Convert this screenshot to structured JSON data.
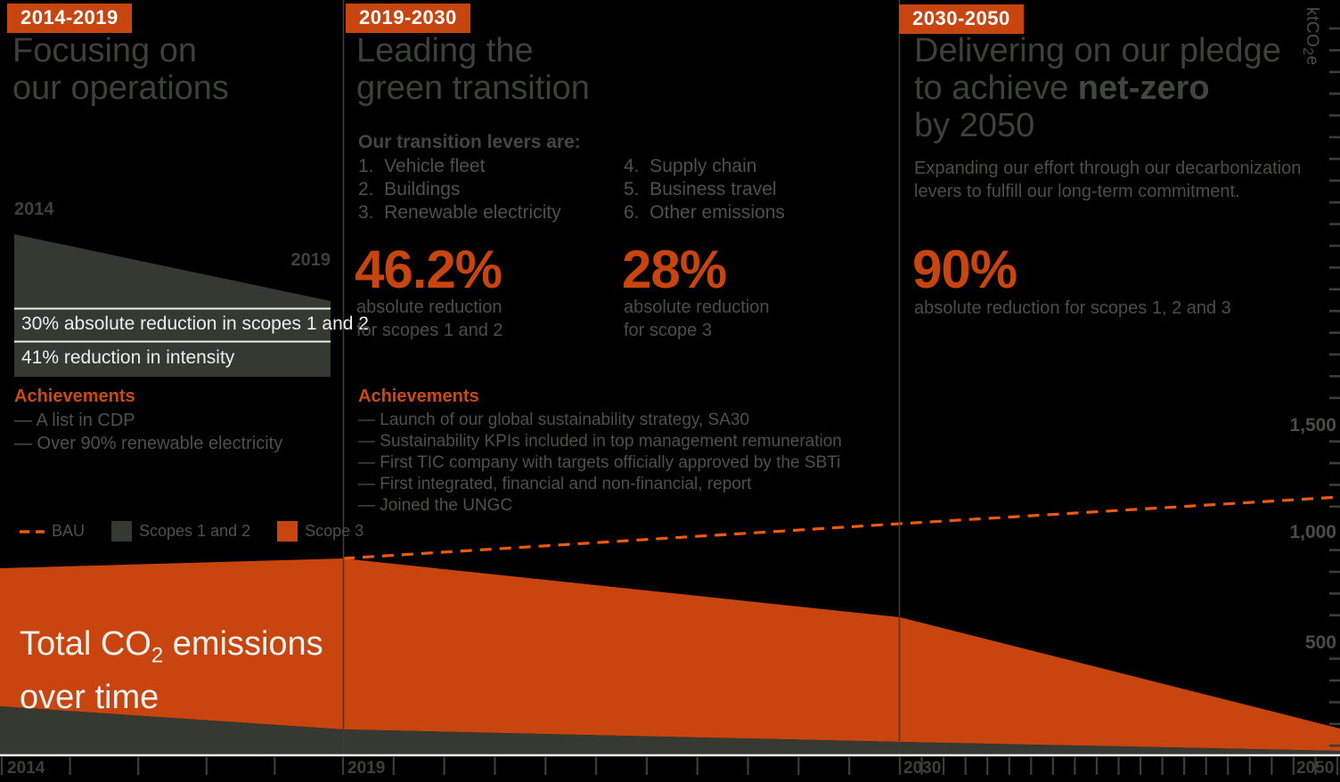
{
  "colors": {
    "background": "#000000",
    "accent_orange": "#C8450F",
    "bau_line_orange": "#EE5A0D",
    "dark_area_gray": "#363931",
    "title_gray": "#3D403B",
    "body_gray": "#4E514B",
    "white_text": "#F2F2F0"
  },
  "panel1": {
    "badge": "2014-2019",
    "title_line1": "Focusing on",
    "title_line2": "our operations",
    "wedge_year_start": "2014",
    "wedge_year_end": "2019",
    "stat_row1": "30% absolute reduction in scopes 1 and 2",
    "stat_row2": "41% reduction in intensity",
    "achievements_title": "Achievements",
    "achievements": [
      "— A list in CDP",
      "— Over 90% renewable electricity"
    ],
    "legend": {
      "bau": "BAU",
      "scopes_1_2": "Scopes 1 and 2",
      "scope_3": "Scope 3"
    }
  },
  "panel2": {
    "badge": "2019-2030",
    "title_line1": "Leading the",
    "title_line2": "green transition",
    "levers_heading": "Our transition levers are:",
    "levers_col1": [
      "1.  Vehicle fleet",
      "2.  Buildings",
      "3.  Renewable electricity"
    ],
    "levers_col2": [
      "4.  Supply chain",
      "5.  Business travel",
      "6.  Other emissions"
    ],
    "stat1_value": "46.2%",
    "stat1_caption_line1": "absolute reduction",
    "stat1_caption_line2": "for scopes 1 and 2",
    "stat2_value": "28%",
    "stat2_caption_line1": "absolute reduction",
    "stat2_caption_line2": "for scope 3",
    "achievements_title": "Achievements",
    "achievements": [
      "— Launch of our global sustainability strategy, SA30",
      "— Sustainability KPIs included in top management remuneration",
      "— First TIC company with targets officially approved by the SBTi",
      "— First integrated, financial and non-financial, report",
      "— Joined the UNGC"
    ]
  },
  "panel3": {
    "badge": "2030-2050",
    "title_line1": "Delivering on our pledge",
    "title_line2_normal": "to achieve ",
    "title_line2_bold": "net-zero",
    "title_line3": "by 2050",
    "subtitle_line1": "Expanding our effort through our decarbonization",
    "subtitle_line2": "levers to fulfill our long-term commitment.",
    "stat_value": "90%",
    "stat_caption": "absolute reduction for scopes 1, 2 and 3"
  },
  "chart_label": {
    "line1_pre": "Total CO",
    "line1_sub": "2",
    "line1_post": " emissions",
    "line2": "over time"
  },
  "y_axis": {
    "unit_pre": "ktCO",
    "unit_sub": "2",
    "unit_post": "e",
    "tick_labels": [
      "1,500",
      "1,000",
      "500"
    ]
  },
  "x_axis": {
    "tick_labels": [
      "2014",
      "2019",
      "2030",
      "2050"
    ]
  },
  "chart_data": {
    "type": "area",
    "stacked": true,
    "title": "Total CO2 emissions over time",
    "ylabel": "ktCO2e",
    "x": [
      2014,
      2019,
      2030,
      2050
    ],
    "x_axis_note": "non-linear time axis with yearly minor ticks; labeled years 2014, 2019, 2030, 2050",
    "series": [
      {
        "name": "Scopes 1 and 2",
        "type": "area",
        "values": [
          210,
          110,
          50,
          10
        ],
        "color": "#363931"
      },
      {
        "name": "Scope 3",
        "type": "area",
        "values": [
          630,
          770,
          560,
          100
        ],
        "color": "#C8450F"
      },
      {
        "name": "BAU",
        "type": "dashed-line",
        "values": [
          null,
          880,
          1030,
          1150
        ],
        "color": "#EE5A0D"
      }
    ],
    "totals": [
      840,
      880,
      610,
      110
    ],
    "y_ticks": [
      500,
      1000,
      1500
    ],
    "ylim": [
      0,
      1600
    ],
    "grid": false,
    "legend_position": "left-middle",
    "annotations": [
      "30% absolute reduction in scopes 1 and 2 (2014-2019)",
      "41% reduction in intensity (2014-2019)",
      "46.2% absolute reduction for scopes 1 and 2 (2019-2030)",
      "28% absolute reduction for scope 3 (2019-2030)",
      "90% absolute reduction for scopes 1, 2 and 3 (2030-2050)"
    ]
  }
}
